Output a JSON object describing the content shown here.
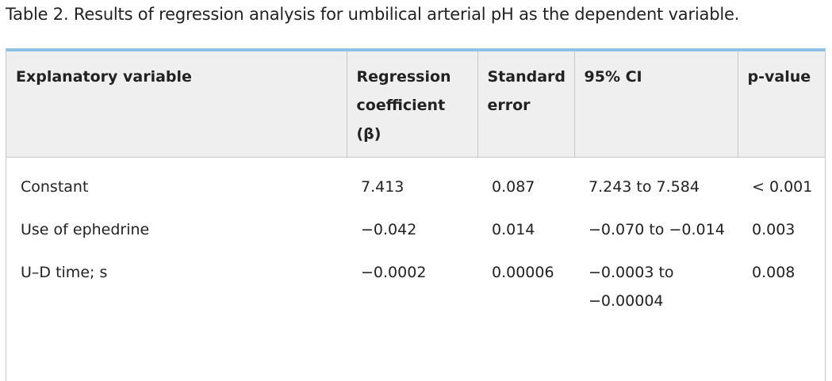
{
  "caption": {
    "label": "Table 2.",
    "text": "Results of regression analysis for umbilical arterial pH as the dependent variable."
  },
  "table": {
    "headers": [
      "Explanatory variable",
      "Regression coefficient (β)",
      "Standard error",
      "95% CI",
      "p-value"
    ],
    "rows": [
      [
        "Constant",
        "7.413",
        "0.087",
        "7.243 to 7.584",
        "< 0.001"
      ],
      [
        "Use of ephedrine",
        "−0.042",
        "0.014",
        "−0.070 to −0.014",
        "0.003"
      ],
      [
        "U–D time; s",
        "−0.0002",
        "0.00006",
        "−0.0003 to −0.00004",
        "0.008"
      ]
    ]
  },
  "colors": {
    "header_background": "#efefef",
    "accent_top_border": "#8fc3e6",
    "grid_line": "#c8c8c8",
    "text": "#222222"
  }
}
